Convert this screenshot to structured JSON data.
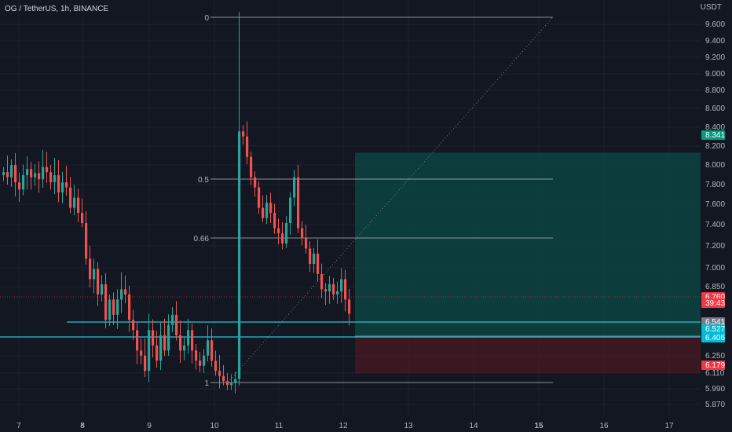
{
  "header": {
    "title": "OG / TetherUS, 1h, BINANCE"
  },
  "price_axis": {
    "unit": "USDT",
    "ticks": [
      "9.600",
      "9.400",
      "9.200",
      "9.000",
      "8.800",
      "8.600",
      "8.400",
      "8.200",
      "8.000",
      "7.800",
      "7.600",
      "7.400",
      "7.200",
      "7.000",
      "6.850",
      "6.250",
      "6.110",
      "5.990",
      "5.870"
    ]
  },
  "time_axis": {
    "labels": [
      {
        "text": "7",
        "bold": false
      },
      {
        "text": "8",
        "bold": true
      },
      {
        "text": "9",
        "bold": false
      },
      {
        "text": "10",
        "bold": false
      },
      {
        "text": "11",
        "bold": false
      },
      {
        "text": "12",
        "bold": false
      },
      {
        "text": "13",
        "bold": false
      },
      {
        "text": "14",
        "bold": false
      },
      {
        "text": "15",
        "bold": true
      },
      {
        "text": "16",
        "bold": false
      },
      {
        "text": "17",
        "bold": false
      }
    ]
  },
  "fib": {
    "levels": [
      "0",
      "0.5",
      "0.66",
      "1"
    ]
  },
  "price_tags": [
    {
      "id": "target",
      "text": "8.341",
      "color": "#089981"
    },
    {
      "id": "last",
      "text": "6.760",
      "color": "#f23645"
    },
    {
      "id": "countdown",
      "text": "39:43",
      "color": "#f23645"
    },
    {
      "id": "entry",
      "text": "6.541",
      "color": "#787b86"
    },
    {
      "id": "hline1",
      "text": "6.527",
      "color": "#00bcd4"
    },
    {
      "id": "hline2",
      "text": "6.406",
      "color": "#00bcd4"
    },
    {
      "id": "stop",
      "text": "6.179",
      "color": "#f23645"
    }
  ],
  "colors": {
    "up": "#26a69a",
    "down": "#ef5350",
    "profit_zone": "#0b4a44",
    "loss_zone": "#4a1a22",
    "hline": "#26c6da",
    "fib_line": "#d1d4dc"
  },
  "chart_data": {
    "type": "candlestick",
    "symbol": "OG / TetherUS",
    "interval": "1h",
    "exchange": "BINANCE",
    "last_price": 6.76,
    "position": {
      "entry": 6.541,
      "target": 8.341,
      "stop": 6.179
    },
    "horizontal_lines": [
      6.527,
      6.406
    ],
    "fib_retracement": {
      "high": 9.74,
      "low": 6.045,
      "levels": [
        0,
        0.5,
        0.66,
        1
      ]
    },
    "closes": [
      8.15,
      8.1,
      8.22,
      8.05,
      7.98,
      8.12,
      8.18,
      8.1,
      8.14,
      8.08,
      8.2,
      8.15,
      8.05,
      8.12,
      7.95,
      8.05,
      8.0,
      7.8,
      7.9,
      7.75,
      7.65,
      7.3,
      7.1,
      7.2,
      6.95,
      7.05,
      6.7,
      6.9,
      6.75,
      6.9,
      7.0,
      6.95,
      6.7,
      6.6,
      6.4,
      6.35,
      6.2,
      6.6,
      6.45,
      6.3,
      6.55,
      6.4,
      6.65,
      6.75,
      6.55,
      6.4,
      6.45,
      6.6,
      6.4,
      6.3,
      6.25,
      6.35,
      6.5,
      6.3,
      6.2,
      6.15,
      6.1,
      6.06,
      6.08,
      6.12,
      8.55,
      8.5,
      8.3,
      8.1,
      8.0,
      7.8,
      7.7,
      7.85,
      7.75,
      7.6,
      7.55,
      7.45,
      7.65,
      7.9,
      8.1,
      7.6,
      7.5,
      7.4,
      7.25,
      7.35,
      7.15,
      7.0,
      6.98,
      7.05,
      6.95,
      6.98,
      7.1,
      6.9,
      6.76
    ]
  }
}
